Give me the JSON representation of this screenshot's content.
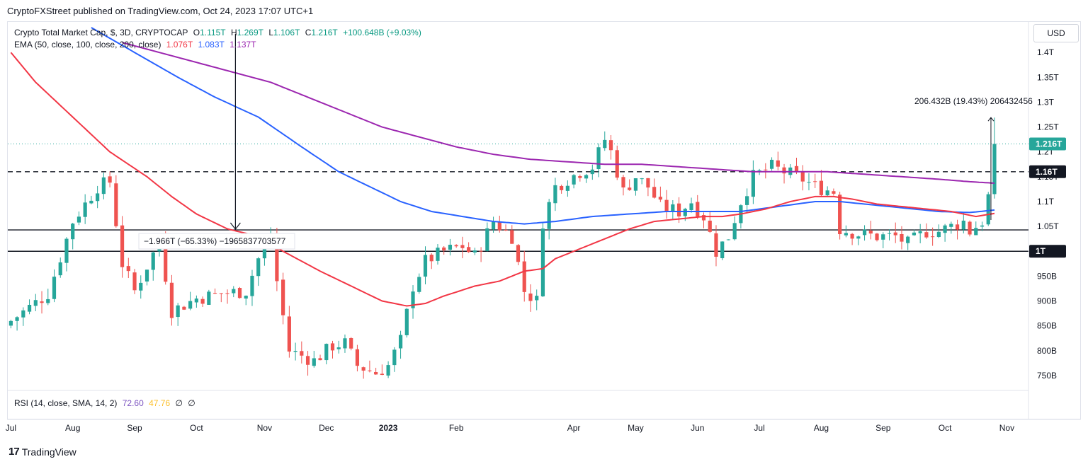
{
  "publisher": "CryptoFXStreet published on TradingView.com, Oct 24, 2023 17:07 UTC+1",
  "legend": {
    "symbol": "Crypto Total Market Cap, $, 3D, CRYPTOCAP",
    "o_label": "O",
    "o": "1.115T",
    "h_label": "H",
    "h": "1.269T",
    "l_label": "L",
    "l": "1.106T",
    "c_label": "C",
    "c": "1.216T",
    "change": "+100.648B (+9.03%)",
    "ema_label": "EMA (50, close, 100, close, 200, close)",
    "ema50": "1.076T",
    "ema100": "1.083T",
    "ema200": "1.137T"
  },
  "rsi_legend": {
    "label": "RSI (14, close, SMA, 14, 2)",
    "rsi": "72.60",
    "sma": "47.76",
    "x1": "∅",
    "x2": "∅"
  },
  "currency": "USD",
  "footer_brand": "TradingView",
  "logo_text": "17",
  "colors": {
    "up": "#26a69a",
    "down": "#ef5350",
    "ema50": "#f23645",
    "ema100": "#2962ff",
    "ema200": "#9c27b0",
    "rsi": "#7e57c2",
    "rsi_sma": "#fbc02d"
  },
  "annotations": {
    "measure_down": "−1.966T (−65.33%) −1965837703577",
    "measure_up": "206.432B (19.43%) 206432456",
    "dashed_level": "1.16T",
    "level_1t": "1T"
  },
  "chart_data": {
    "type": "candlestick",
    "title": "Crypto Total Market Cap, $, 3D, CRYPTOCAP",
    "unit": "T (trillion USD)",
    "ylim": [
      0.72,
      1.46
    ],
    "y_ticks": [
      {
        "v": 1.4,
        "label": "1.4T"
      },
      {
        "v": 1.35,
        "label": "1.35T"
      },
      {
        "v": 1.3,
        "label": "1.3T"
      },
      {
        "v": 1.25,
        "label": "1.25T"
      },
      {
        "v": 1.2,
        "label": "1.2T"
      },
      {
        "v": 1.15,
        "label": "1.15T"
      },
      {
        "v": 1.1,
        "label": "1.1T"
      },
      {
        "v": 1.05,
        "label": "1.05T"
      },
      {
        "v": 1.0,
        "label": "1T"
      },
      {
        "v": 0.95,
        "label": "950B"
      },
      {
        "v": 0.9,
        "label": "900B"
      },
      {
        "v": 0.85,
        "label": "850B"
      },
      {
        "v": 0.8,
        "label": "800B"
      },
      {
        "v": 0.75,
        "label": "750B"
      }
    ],
    "x_ticks": [
      {
        "i": 0,
        "label": "Jul"
      },
      {
        "i": 10,
        "label": "Aug"
      },
      {
        "i": 20,
        "label": "Sep"
      },
      {
        "i": 30,
        "label": "Oct"
      },
      {
        "i": 41,
        "label": "Nov"
      },
      {
        "i": 51,
        "label": "Dec"
      },
      {
        "i": 61,
        "label": "2023"
      },
      {
        "i": 72,
        "label": "Feb"
      },
      {
        "i": 91,
        "label": "Apr"
      },
      {
        "i": 101,
        "label": "May"
      },
      {
        "i": 111,
        "label": "Jun"
      },
      {
        "i": 121,
        "label": "Jul"
      },
      {
        "i": 131,
        "label": "Aug"
      },
      {
        "i": 141,
        "label": "Sep"
      },
      {
        "i": 151,
        "label": "Oct"
      },
      {
        "i": 161,
        "label": "Nov"
      }
    ],
    "price_labels": [
      {
        "v": 1.216,
        "label": "1.216T",
        "bg": "#26a69a",
        "fg": "#ffffff"
      },
      {
        "v": 1.16,
        "label": "1.16T",
        "bg": "#131722",
        "fg": "#ffffff"
      },
      {
        "v": 1.0,
        "label": "1T",
        "bg": "#131722",
        "fg": "#ffffff"
      }
    ],
    "horizontal_levels": [
      {
        "v": 1.16,
        "style": "dashed"
      },
      {
        "v": 1.043,
        "style": "solid"
      },
      {
        "v": 1.0,
        "style": "solid"
      }
    ],
    "anchors": [
      [
        0,
        0.86
      ],
      [
        6,
        0.915
      ],
      [
        10,
        1.06
      ],
      [
        14,
        1.13
      ],
      [
        16,
        1.14
      ],
      [
        18,
        0.975
      ],
      [
        20,
        0.92
      ],
      [
        24,
        1.02
      ],
      [
        26,
        0.88
      ],
      [
        30,
        0.905
      ],
      [
        34,
        0.915
      ],
      [
        38,
        0.92
      ],
      [
        40,
        0.985
      ],
      [
        42,
        1.03
      ],
      [
        43,
        0.94
      ],
      [
        45,
        0.8
      ],
      [
        49,
        0.78
      ],
      [
        52,
        0.81
      ],
      [
        54,
        0.815
      ],
      [
        56,
        0.77
      ],
      [
        59,
        0.755
      ],
      [
        61,
        0.77
      ],
      [
        63,
        0.82
      ],
      [
        65,
        0.93
      ],
      [
        67,
        0.98
      ],
      [
        70,
        1.0
      ],
      [
        73,
        1.01
      ],
      [
        75,
        0.99
      ],
      [
        78,
        1.06
      ],
      [
        81,
        1.03
      ],
      [
        83,
        0.92
      ],
      [
        85,
        0.9
      ],
      [
        86,
        1.06
      ],
      [
        88,
        1.13
      ],
      [
        92,
        1.16
      ],
      [
        94,
        1.17
      ],
      [
        96,
        1.225
      ],
      [
        97,
        1.2
      ],
      [
        99,
        1.12
      ],
      [
        101,
        1.15
      ],
      [
        103,
        1.13
      ],
      [
        105,
        1.09
      ],
      [
        108,
        1.08
      ],
      [
        110,
        1.1
      ],
      [
        112,
        1.07
      ],
      [
        114,
        1.0
      ],
      [
        116,
        1.03
      ],
      [
        118,
        1.1
      ],
      [
        120,
        1.15
      ],
      [
        123,
        1.17
      ],
      [
        125,
        1.16
      ],
      [
        128,
        1.145
      ],
      [
        130,
        1.13
      ],
      [
        133,
        1.12
      ],
      [
        134,
        1.045
      ],
      [
        137,
        1.035
      ],
      [
        140,
        1.03
      ],
      [
        143,
        1.03
      ],
      [
        145,
        1.015
      ],
      [
        148,
        1.04
      ],
      [
        150,
        1.04
      ],
      [
        152,
        1.05
      ],
      [
        154,
        1.06
      ],
      [
        155,
        1.04
      ],
      [
        157,
        1.06
      ],
      [
        158,
        1.11
      ],
      [
        159,
        1.216
      ]
    ],
    "ema50_pts": [
      [
        0,
        1.4
      ],
      [
        4,
        1.34
      ],
      [
        10,
        1.27
      ],
      [
        16,
        1.2
      ],
      [
        22,
        1.15
      ],
      [
        26,
        1.11
      ],
      [
        30,
        1.075
      ],
      [
        35,
        1.045
      ],
      [
        40,
        1.03
      ],
      [
        44,
        1.0
      ],
      [
        50,
        0.96
      ],
      [
        55,
        0.93
      ],
      [
        60,
        0.9
      ],
      [
        64,
        0.89
      ],
      [
        67,
        0.895
      ],
      [
        70,
        0.91
      ],
      [
        75,
        0.93
      ],
      [
        79,
        0.94
      ],
      [
        83,
        0.96
      ],
      [
        86,
        0.965
      ],
      [
        88,
        0.985
      ],
      [
        92,
        1.005
      ],
      [
        96,
        1.025
      ],
      [
        100,
        1.045
      ],
      [
        104,
        1.06
      ],
      [
        108,
        1.065
      ],
      [
        112,
        1.07
      ],
      [
        115,
        1.07
      ],
      [
        118,
        1.075
      ],
      [
        122,
        1.085
      ],
      [
        126,
        1.1
      ],
      [
        130,
        1.11
      ],
      [
        133,
        1.11
      ],
      [
        136,
        1.105
      ],
      [
        140,
        1.095
      ],
      [
        144,
        1.09
      ],
      [
        148,
        1.085
      ],
      [
        152,
        1.08
      ],
      [
        156,
        1.07
      ],
      [
        159,
        1.076
      ]
    ],
    "ema100_pts": [
      [
        13,
        1.45
      ],
      [
        20,
        1.4
      ],
      [
        27,
        1.35
      ],
      [
        33,
        1.31
      ],
      [
        40,
        1.27
      ],
      [
        47,
        1.21
      ],
      [
        53,
        1.16
      ],
      [
        58,
        1.13
      ],
      [
        63,
        1.1
      ],
      [
        68,
        1.08
      ],
      [
        73,
        1.07
      ],
      [
        78,
        1.06
      ],
      [
        83,
        1.055
      ],
      [
        88,
        1.06
      ],
      [
        94,
        1.07
      ],
      [
        100,
        1.075
      ],
      [
        106,
        1.08
      ],
      [
        112,
        1.08
      ],
      [
        118,
        1.08
      ],
      [
        124,
        1.09
      ],
      [
        130,
        1.1
      ],
      [
        134,
        1.1
      ],
      [
        138,
        1.095
      ],
      [
        142,
        1.09
      ],
      [
        146,
        1.085
      ],
      [
        150,
        1.08
      ],
      [
        155,
        1.078
      ],
      [
        159,
        1.083
      ]
    ],
    "ema200_pts": [
      [
        18,
        1.42
      ],
      [
        24,
        1.4
      ],
      [
        30,
        1.38
      ],
      [
        36,
        1.36
      ],
      [
        42,
        1.34
      ],
      [
        48,
        1.31
      ],
      [
        54,
        1.28
      ],
      [
        60,
        1.25
      ],
      [
        66,
        1.23
      ],
      [
        72,
        1.21
      ],
      [
        78,
        1.195
      ],
      [
        84,
        1.185
      ],
      [
        90,
        1.18
      ],
      [
        96,
        1.175
      ],
      [
        102,
        1.175
      ],
      [
        108,
        1.17
      ],
      [
        114,
        1.165
      ],
      [
        120,
        1.16
      ],
      [
        126,
        1.16
      ],
      [
        132,
        1.16
      ],
      [
        138,
        1.155
      ],
      [
        144,
        1.15
      ],
      [
        150,
        1.145
      ],
      [
        155,
        1.14
      ],
      [
        159,
        1.137
      ]
    ],
    "last": {
      "open": 1.115,
      "high": 1.269,
      "low": 1.106,
      "close": 1.216
    }
  }
}
